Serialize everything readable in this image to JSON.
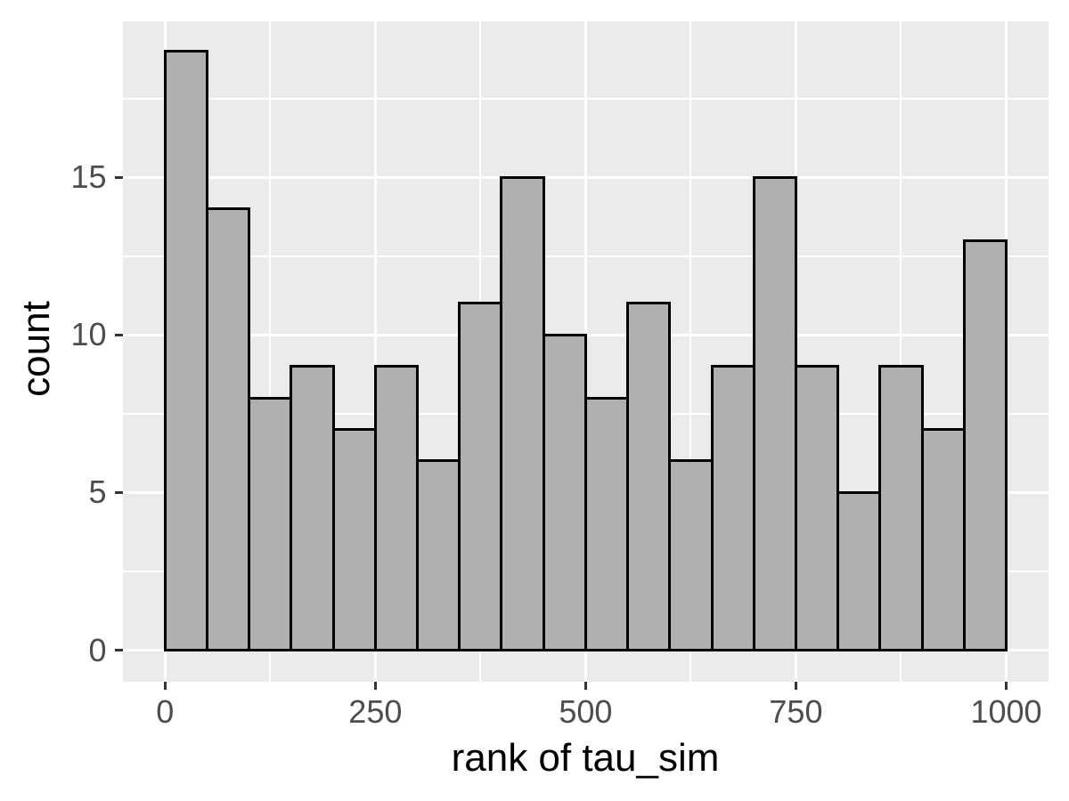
{
  "chart_data": {
    "type": "bar",
    "subtype": "histogram",
    "title": "",
    "xlabel": "rank of tau_sim",
    "ylabel": "count",
    "bin_width": 50,
    "bins_x0": [
      0,
      50,
      100,
      150,
      200,
      250,
      300,
      350,
      400,
      450,
      500,
      550,
      600,
      650,
      700,
      750,
      800,
      850,
      900,
      950
    ],
    "counts": [
      19,
      14,
      8,
      9,
      7,
      9,
      6,
      11,
      15,
      10,
      8,
      11,
      6,
      9,
      15,
      9,
      5,
      9,
      7,
      13
    ],
    "x_major_ticks": [
      0,
      250,
      500,
      750,
      1000
    ],
    "x_minor_ticks": [
      125,
      375,
      625,
      875
    ],
    "y_major_ticks": [
      0,
      5,
      10,
      15
    ],
    "y_minor_ticks": [
      2.5,
      7.5,
      12.5,
      17.5
    ],
    "xlim": [
      -50,
      1050
    ],
    "ylim": [
      -1,
      19.95
    ],
    "grid": "on",
    "legend": "none",
    "colors": {
      "panel_background": "#EBEBEB",
      "bar_fill": "#B0B0B0",
      "bar_stroke": "#000000",
      "gridline": "#FFFFFF",
      "tick_text": "#4D4D4D",
      "axis_title_text": "#000000",
      "tick_mark": "#333333",
      "figure_background": "#FFFFFF"
    }
  }
}
